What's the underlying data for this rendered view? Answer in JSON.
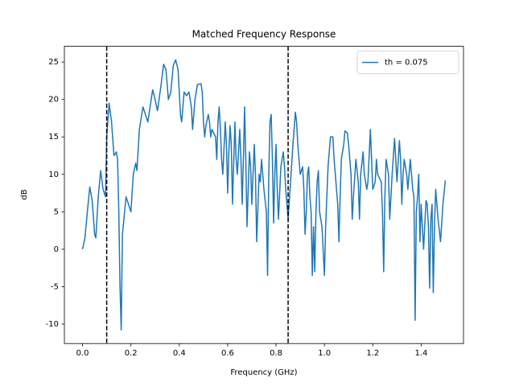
{
  "chart_data": {
    "type": "line",
    "title": "Matched Frequency Response",
    "xlabel": "Frequency (GHz)",
    "ylabel": "dB",
    "x": [
      0,
      0.01,
      0.02,
      0.03,
      0.04,
      0.05,
      0.055,
      0.065,
      0.075,
      0.085,
      0.095,
      0.1,
      0.11,
      0.12,
      0.13,
      0.14,
      0.145,
      0.15,
      0.155,
      0.16,
      0.165,
      0.18,
      0.19,
      0.2,
      0.21,
      0.22,
      0.225,
      0.235,
      0.25,
      0.26,
      0.27,
      0.29,
      0.3,
      0.31,
      0.325,
      0.335,
      0.345,
      0.355,
      0.365,
      0.375,
      0.385,
      0.395,
      0.405,
      0.41,
      0.42,
      0.43,
      0.44,
      0.45,
      0.455,
      0.465,
      0.475,
      0.49,
      0.495,
      0.5,
      0.505,
      0.51,
      0.52,
      0.525,
      0.53,
      0.535,
      0.55,
      0.555,
      0.56,
      0.565,
      0.57,
      0.575,
      0.58,
      0.59,
      0.595,
      0.6,
      0.605,
      0.61,
      0.615,
      0.62,
      0.63,
      0.635,
      0.64,
      0.65,
      0.655,
      0.66,
      0.665,
      0.67,
      0.675,
      0.68,
      0.685,
      0.69,
      0.695,
      0.7,
      0.71,
      0.715,
      0.72,
      0.73,
      0.735,
      0.74,
      0.75,
      0.76,
      0.765,
      0.77,
      0.775,
      0.78,
      0.785,
      0.79,
      0.795,
      0.8,
      0.805,
      0.81,
      0.82,
      0.83,
      0.835,
      0.84,
      0.85,
      0.86,
      0.87,
      0.88,
      0.885,
      0.89,
      0.9,
      0.91,
      0.915,
      0.92,
      0.925,
      0.93,
      0.935,
      0.94,
      0.945,
      0.95,
      0.955,
      0.96,
      0.965,
      0.97,
      0.975,
      0.98,
      0.99,
      1.0,
      1.005,
      1.015,
      1.025,
      1.035,
      1.04,
      1.05,
      1.055,
      1.06,
      1.065,
      1.07,
      1.08,
      1.085,
      1.095,
      1.1,
      1.105,
      1.11,
      1.115,
      1.12,
      1.13,
      1.14,
      1.145,
      1.15,
      1.16,
      1.165,
      1.175,
      1.18,
      1.19,
      1.195,
      1.2,
      1.21,
      1.215,
      1.22,
      1.235,
      1.24,
      1.245,
      1.25,
      1.255,
      1.265,
      1.27,
      1.28,
      1.29,
      1.295,
      1.3,
      1.31,
      1.315,
      1.32,
      1.325,
      1.33,
      1.34,
      1.345,
      1.355,
      1.36,
      1.365,
      1.37,
      1.375,
      1.38,
      1.385,
      1.39,
      1.395,
      1.4,
      1.41,
      1.42,
      1.425,
      1.43,
      1.435,
      1.44,
      1.445,
      1.45,
      1.455,
      1.46,
      1.47,
      1.48,
      1.49,
      1.5
    ],
    "series": [
      {
        "name": "th = 0.075",
        "color": "#1f77b4",
        "values": [
          0,
          1.5,
          5,
          8.3,
          6.5,
          2,
          1.5,
          7,
          10.5,
          8,
          7,
          15,
          19.5,
          17,
          12.5,
          13,
          12,
          5,
          -5,
          -10.8,
          2,
          7,
          6,
          5,
          10,
          11.5,
          10.5,
          16,
          19,
          18,
          17,
          21.3,
          20,
          18.5,
          22,
          24.7,
          24,
          20,
          21,
          24.5,
          25.3,
          24,
          18,
          17,
          21,
          20.5,
          21,
          19,
          16,
          20,
          22,
          22.1,
          21,
          17,
          15,
          16.5,
          18,
          17,
          15,
          16,
          15,
          12,
          17,
          19,
          16,
          12,
          10,
          17,
          14,
          7.5,
          13,
          16.5,
          14,
          6,
          17,
          12,
          10,
          16,
          12,
          6,
          12,
          19,
          12,
          3,
          8,
          13,
          11,
          6,
          14,
          10,
          1,
          10,
          9,
          12,
          8,
          5,
          -3.5,
          10,
          17,
          18,
          12,
          3.5,
          10,
          14,
          8,
          4,
          11,
          13,
          11,
          8,
          4,
          9,
          14,
          18.3,
          17,
          14,
          10,
          11,
          8,
          2,
          5,
          10,
          11,
          7,
          5,
          -3.5,
          3,
          -3,
          5,
          9,
          10.5,
          5,
          3,
          -3.5,
          3,
          11,
          15,
          15,
          12,
          8,
          6,
          1,
          7,
          12,
          14,
          15.8,
          15.5,
          14,
          12,
          10,
          4,
          7,
          12,
          9,
          4,
          10,
          13,
          10,
          8,
          9,
          16,
          12,
          8,
          9,
          12,
          10,
          9,
          5,
          -3,
          7,
          12,
          10,
          4,
          10,
          14.8,
          12,
          9,
          14.5,
          12,
          6,
          10,
          12,
          10,
          8,
          12,
          10,
          8,
          7,
          -9.5,
          5,
          7,
          10,
          1,
          6,
          0,
          6.5,
          6,
          3,
          -5.2,
          4,
          6,
          -5.8,
          3,
          8,
          4,
          1,
          6,
          9.2
        ]
      }
    ],
    "vlines": [
      0.1,
      0.85
    ],
    "vline_color": "#000000",
    "xlim": [
      -0.075,
      1.575
    ],
    "ylim": [
      -12.6,
      27.1
    ],
    "xticks": [
      {
        "value": 0,
        "label": "0.0"
      },
      0.2,
      0.4,
      0.6,
      0.8,
      {
        "value": 1,
        "label": "1.0"
      },
      1.2,
      1.4
    ],
    "yticks": [
      -10,
      -5,
      0,
      5,
      10,
      15,
      20,
      25
    ],
    "grid": false,
    "legend": "upper right"
  }
}
